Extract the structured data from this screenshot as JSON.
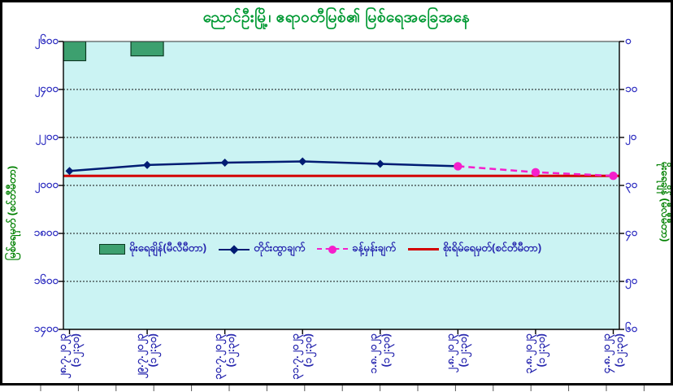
{
  "title": "ညောင်ဦးမြို့၊ ဧရာဝတီမြစ်၏ မြစ်ရေအခြေအနေ",
  "colors": {
    "title_green": "#009933",
    "axis_title_green": "#008000",
    "tick_label_blue": "#3333C2",
    "plot_background": "#CBF3F3",
    "rain_bar_fill": "#3DA06F",
    "observed_line": "#001C73",
    "forecast_line": "#F51FCB",
    "danger_line": "#D40000"
  },
  "axes": {
    "left": {
      "title": "မြစ်ရေမှတ် (စင်တီမီတာ)",
      "tick_labels": [
        "၂၆၀၀",
        "၂၄၀၀",
        "၂၂၀၀",
        "၂၀၀၀",
        "၁၈၀၀",
        "၁၆၀၀",
        "၁၄၀၀"
      ]
    },
    "right": {
      "title": "မိုးရေချိန် (မီလီမီတာ)",
      "tick_labels": [
        "၀",
        "၁၀",
        "၂၀",
        "၃၀",
        "၄၀",
        "၅၀",
        "၆၀"
      ]
    },
    "x": {
      "labels": [
        {
          "date": "၂၈.၇.၂၀၂၃",
          "time": "(၁၂:၃၀)"
        },
        {
          "date": "၂၉.၇.၂၀၂၃",
          "time": "(၁၂:၃၀)"
        },
        {
          "date": "၃၀.၇.၂၀၂၃",
          "time": "(၁၂:၃၀)"
        },
        {
          "date": "၃၁.၇.၂၀၂၃",
          "time": "(၁၂:၃၀)"
        },
        {
          "date": "၁.၈.၂၀၂၃",
          "time": "(၁၂:၃၀)"
        },
        {
          "date": "၂.၈.၂၀၂၃",
          "time": "(၁၂:၃၀)"
        },
        {
          "date": "၃.၈.၂၀၂၃",
          "time": "(၁၂:၃၀)"
        },
        {
          "date": "၄.၈.၂၀၂၃",
          "time": "(၁၂:၃၀)"
        }
      ]
    }
  },
  "legend": {
    "items": [
      {
        "label": "မိုးရေချိန်(မီလီမီတာ)",
        "marker": "green-bar-swatch"
      },
      {
        "label": "တိုင်းထွာချက်",
        "marker": "navy-line-diamond-swatch"
      },
      {
        "label": "ခန့်မှန်းချက်",
        "marker": "magenta-dashed-circle-swatch"
      },
      {
        "label": "စိုးရိမ်ရေမှတ်(စင်တီမီတာ)",
        "marker": "red-line-swatch"
      }
    ]
  },
  "chart_data": {
    "type": "bar",
    "subtype": "combo-hydrograph",
    "title": "ညောင်ဦးမြို့၊ ဧရာဝတီမြစ်၏ မြစ်ရေအခြေအနေ",
    "categories": [
      "၂၈.၇.၂၀၂၃ (၁၂:၃၀)",
      "၂၉.၇.၂၀၂၃ (၁၂:၃၀)",
      "၃၀.၇.၂၀၂၃ (၁၂:၃၀)",
      "၃၁.၇.၂၀၂၃ (၁၂:၃၀)",
      "၁.၈.၂၀၂၃ (၁၂:၃၀)",
      "၂.၈.၂၀၂၃ (၁၂:၃၀)",
      "၃.၈.၂၀၂၃ (၁၂:၃၀)",
      "၄.၈.၂၀၂၃ (၁၂:၃၀)"
    ],
    "left_axis": {
      "label": "မြစ်ရေမှတ် (စင်တီမီတာ)",
      "range": [
        1400,
        2600
      ],
      "tick_step": 200,
      "grid": "dashed"
    },
    "right_axis": {
      "label": "မိုးရေချိန် (မီလီမီတာ)",
      "range": [
        0,
        60
      ],
      "tick_step": 10,
      "inverted": true
    },
    "legend_position": "inside-middle",
    "series": [
      {
        "name": "မိုးရေချိန်(မီလီမီတာ)",
        "type": "bar",
        "axis": "right",
        "color": "#3DA06F",
        "values": [
          4,
          3,
          null,
          null,
          null,
          null,
          null,
          null
        ]
      },
      {
        "name": "တိုင်းထွာချက်",
        "type": "line",
        "axis": "left",
        "marker": "diamond",
        "color": "#001C73",
        "values": [
          2060,
          2085,
          2095,
          2100,
          2090,
          2080,
          null,
          null
        ]
      },
      {
        "name": "ခန့်မှန်းချက်",
        "type": "line-dashed",
        "axis": "left",
        "marker": "circle",
        "color": "#F51FCB",
        "values": [
          null,
          null,
          null,
          null,
          null,
          2080,
          2055,
          2040
        ]
      },
      {
        "name": "စိုးရိမ်ရေမှတ်(စင်တီမီတာ)",
        "type": "constant-line",
        "axis": "left",
        "color": "#D40000",
        "constant": 2040
      }
    ]
  }
}
